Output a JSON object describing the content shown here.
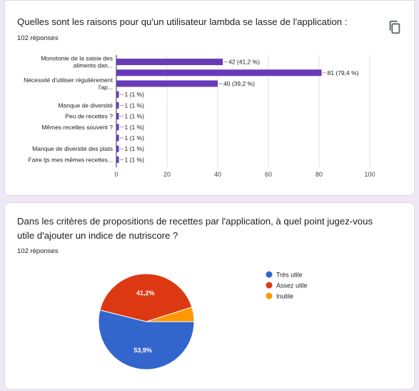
{
  "charts": [
    {
      "question": "Quelles sont les raisons pour qu'un utilisateur lambda se lasse de l'application :",
      "responses": "102 réponses",
      "copy_icon": "copy-icon"
    },
    {
      "question": "Dans les critères de propositions de recettes par l'application, à quel point jugez-vous utile d'ajouter un indice de nutriscore ?",
      "responses": "102 réponses"
    }
  ],
  "chart_data": [
    {
      "type": "bar",
      "orientation": "horizontal",
      "categories": [
        [
          "Monotonie de la saisie des",
          "aliments dan..."
        ],
        [
          ""
        ],
        [
          "Nécessité d'utiliser régulièrement",
          "l'ap..."
        ],
        [
          ""
        ],
        [
          "Manque de diversité"
        ],
        [
          "Peu de recettes ?"
        ],
        [
          "Mêmes recettes souvent ?"
        ],
        [
          ""
        ],
        [
          "Manque de diversité des plats"
        ],
        [
          "Faire tjs mes mêmes recettes..."
        ]
      ],
      "values": [
        42,
        81,
        40,
        1,
        1,
        1,
        1,
        1,
        1,
        1
      ],
      "data_labels": [
        "42 (41,2 %)",
        "81 (79,4 %)",
        "40 (39,2 %)",
        "1 (1 %)",
        "1 (1 %)",
        "1 (1 %)",
        "1 (1 %)",
        "1 (1 %)",
        "1 (1 %)",
        "1 (1 %)"
      ],
      "xlim": [
        0,
        100
      ],
      "xticks": [
        0,
        20,
        40,
        60,
        80,
        100
      ],
      "grid": true,
      "color": "#673ab7"
    },
    {
      "type": "pie",
      "categories": [
        "Très utile",
        "Assez utile",
        "Inutile"
      ],
      "values": [
        53.9,
        41.2,
        4.9
      ],
      "data_labels": [
        "53,9%",
        "41,2%",
        ""
      ],
      "colors": [
        "#3366cc",
        "#dc3912",
        "#ff9900"
      ],
      "legend": "right"
    }
  ]
}
